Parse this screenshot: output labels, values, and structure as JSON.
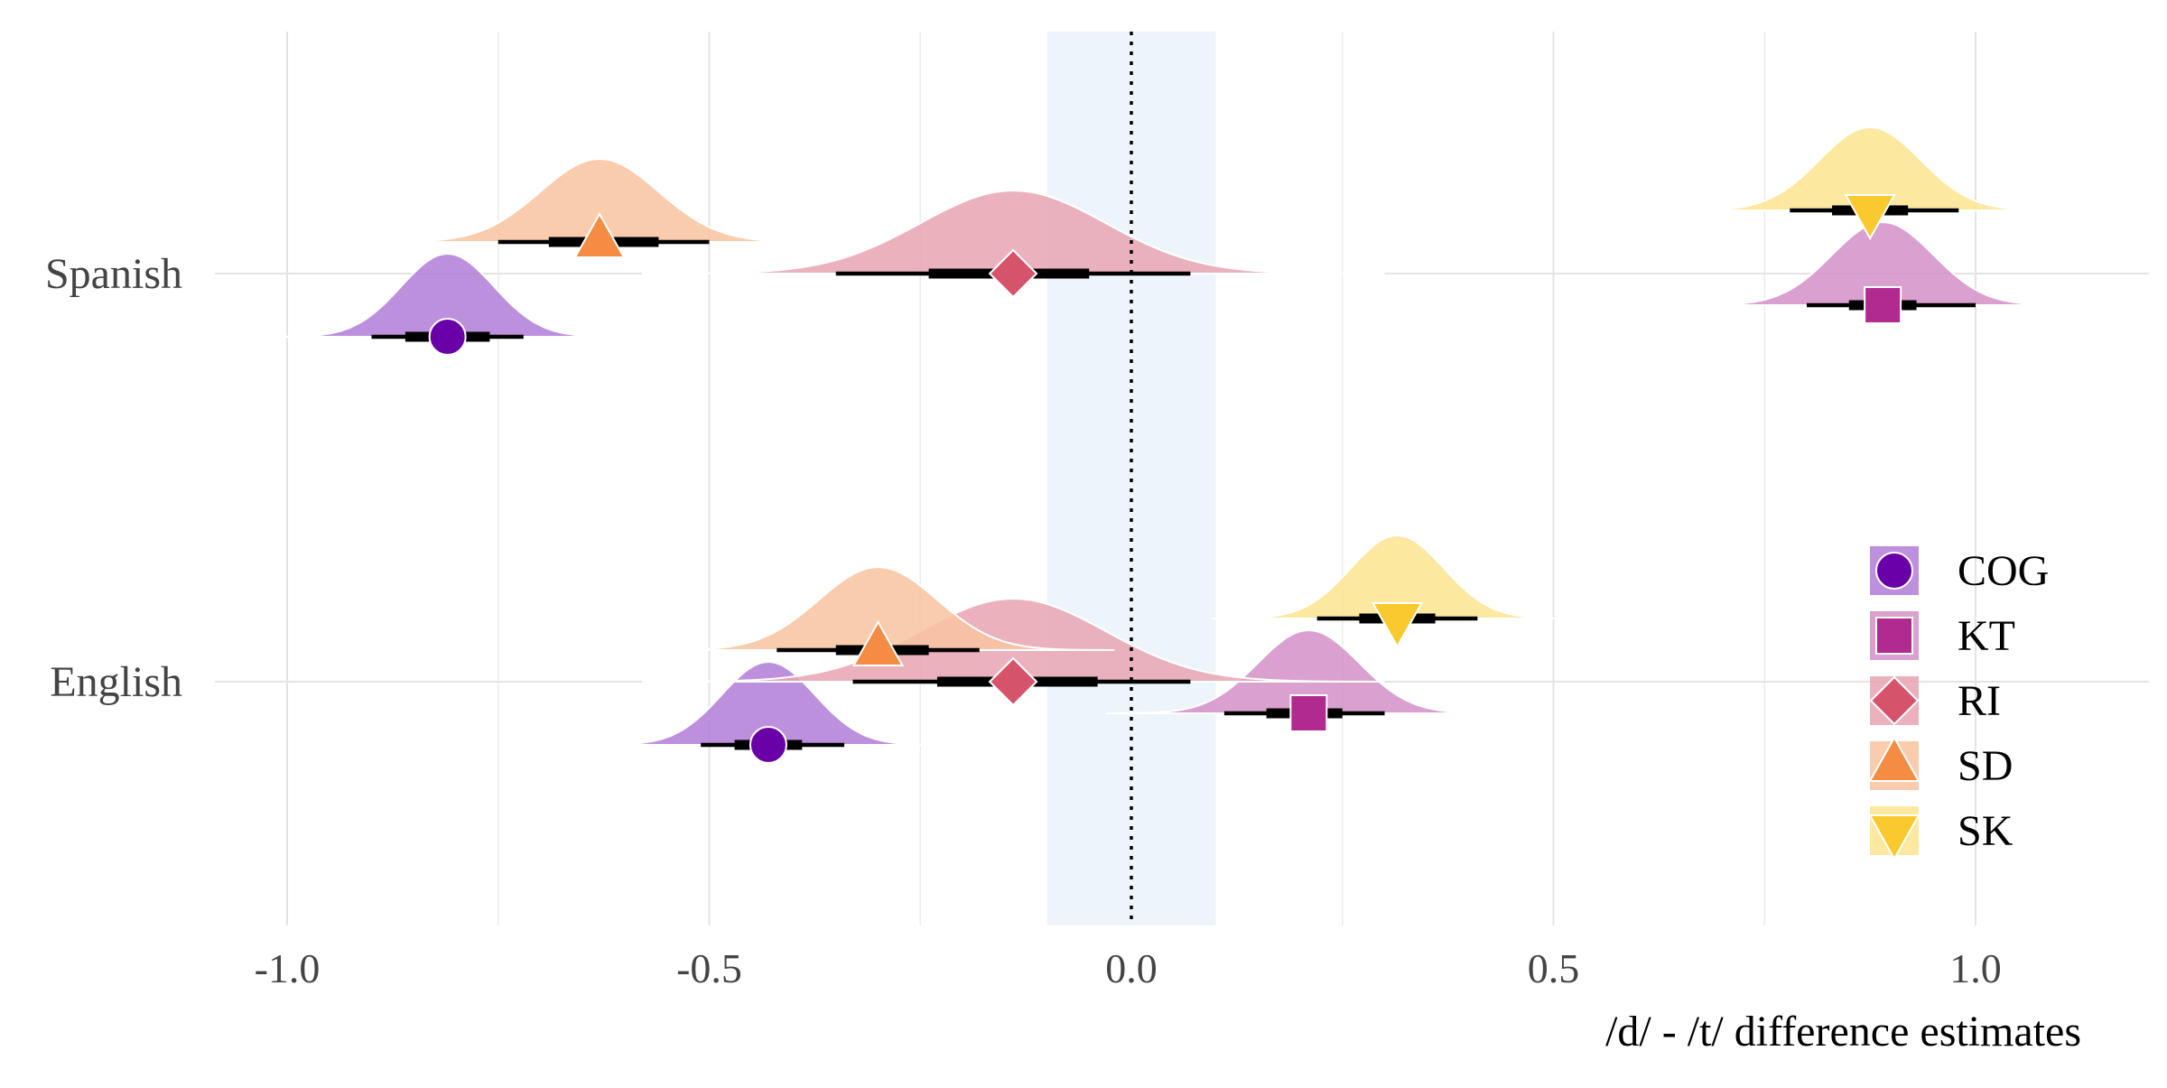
{
  "chart_data": {
    "type": "interval",
    "xlabel": "/d/ - /t/ difference estimates",
    "ylabel": "",
    "xlim": [
      -1.2,
      1.2
    ],
    "x_ticks": [
      {
        "value": -1.0,
        "label": "-1.0"
      },
      {
        "value": -0.5,
        "label": "-0.5"
      },
      {
        "value": 0.0,
        "label": "0.0"
      },
      {
        "value": 0.5,
        "label": "0.5"
      },
      {
        "value": 1.0,
        "label": "1.0"
      }
    ],
    "categories": [
      "Spanish",
      "English"
    ],
    "rope": [
      -0.1,
      0.1
    ],
    "reference_line": 0,
    "grid": true,
    "legend_position": "right",
    "series": [
      {
        "name": "COG",
        "color": "#6a00a8",
        "fill": "#b27cd8",
        "shape": "circle",
        "points": [
          {
            "group": "Spanish",
            "median": -0.81,
            "sd": 0.055,
            "ci66": [
              -0.86,
              -0.76
            ],
            "ci95": [
              -0.9,
              -0.72
            ]
          },
          {
            "group": "English",
            "median": -0.43,
            "sd": 0.055,
            "ci66": [
              -0.47,
              -0.39
            ],
            "ci95": [
              -0.51,
              -0.34
            ]
          }
        ]
      },
      {
        "name": "KT",
        "color": "#b12a90",
        "fill": "#d48fc8",
        "shape": "square",
        "points": [
          {
            "group": "Spanish",
            "median": 0.89,
            "sd": 0.06,
            "ci66": [
              0.85,
              0.93
            ],
            "ci95": [
              0.8,
              1.0
            ]
          },
          {
            "group": "English",
            "median": 0.21,
            "sd": 0.06,
            "ci66": [
              0.16,
              0.25
            ],
            "ci95": [
              0.11,
              0.3
            ]
          }
        ]
      },
      {
        "name": "RI",
        "color": "#d6546b",
        "fill": "#e8a5b1",
        "shape": "diamond",
        "points": [
          {
            "group": "Spanish",
            "median": -0.14,
            "sd": 0.11,
            "ci66": [
              -0.24,
              -0.05
            ],
            "ci95": [
              -0.35,
              0.07
            ]
          },
          {
            "group": "English",
            "median": -0.14,
            "sd": 0.11,
            "ci66": [
              -0.23,
              -0.04
            ],
            "ci95": [
              -0.33,
              0.07
            ]
          }
        ]
      },
      {
        "name": "SD",
        "color": "#f48c44",
        "fill": "#f8c3a0",
        "shape": "triangle-up",
        "points": [
          {
            "group": "Spanish",
            "median": -0.63,
            "sd": 0.07,
            "ci66": [
              -0.69,
              -0.56
            ],
            "ci95": [
              -0.75,
              -0.5
            ]
          },
          {
            "group": "English",
            "median": -0.3,
            "sd": 0.07,
            "ci66": [
              -0.35,
              -0.24
            ],
            "ci95": [
              -0.42,
              -0.18
            ]
          }
        ]
      },
      {
        "name": "SK",
        "color": "#f9c92e",
        "fill": "#fbe48e",
        "shape": "triangle-down",
        "points": [
          {
            "group": "Spanish",
            "median": 0.875,
            "sd": 0.06,
            "ci66": [
              0.83,
              0.92
            ],
            "ci95": [
              0.78,
              0.98
            ]
          },
          {
            "group": "English",
            "median": 0.315,
            "sd": 0.055,
            "ci66": [
              0.27,
              0.36
            ],
            "ci95": [
              0.22,
              0.41
            ]
          }
        ]
      }
    ]
  }
}
